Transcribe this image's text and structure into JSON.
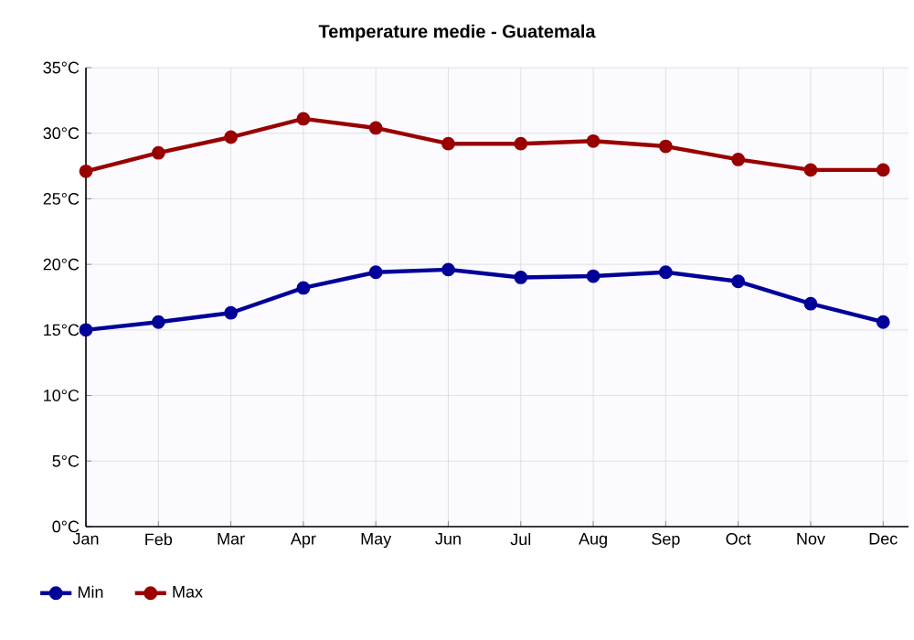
{
  "chart_data": {
    "type": "line",
    "title": "Temperature medie - Guatemala",
    "categories": [
      "Jan",
      "Feb",
      "Mar",
      "Apr",
      "May",
      "Jun",
      "Jul",
      "Aug",
      "Sep",
      "Oct",
      "Nov",
      "Dec"
    ],
    "series": [
      {
        "name": "Min",
        "color": "#000099",
        "values": [
          15.0,
          15.6,
          16.3,
          18.2,
          19.4,
          19.6,
          19.0,
          19.1,
          19.4,
          18.7,
          17.0,
          15.6
        ]
      },
      {
        "name": "Max",
        "color": "#990000",
        "values": [
          27.1,
          28.5,
          29.7,
          31.1,
          30.4,
          29.2,
          29.2,
          29.4,
          29.0,
          28.0,
          27.2,
          27.2
        ]
      }
    ],
    "ylim": [
      0,
      35
    ],
    "yticks": [
      {
        "value": 0,
        "label": "0°C"
      },
      {
        "value": 5,
        "label": "5°C"
      },
      {
        "value": 10,
        "label": "10°C"
      },
      {
        "value": 15,
        "label": "15°C"
      },
      {
        "value": 20,
        "label": "20°C"
      },
      {
        "value": 25,
        "label": "25°C"
      },
      {
        "value": 30,
        "label": "30°C"
      },
      {
        "value": 35,
        "label": "35°C"
      }
    ],
    "grid": true,
    "legend": "bottom left",
    "marker": "circle",
    "line_style": "solid"
  }
}
